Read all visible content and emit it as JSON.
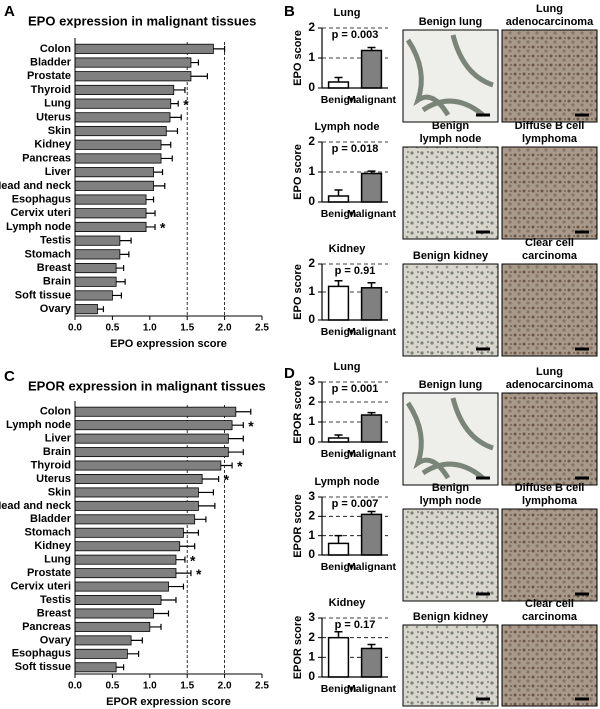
{
  "chart_data": [
    {
      "type": "hbar",
      "panel": "A",
      "title": "EPO expression in malignant tissues",
      "x_label": "EPO expression score",
      "categories": [
        "Colon",
        "Bladder",
        "Prostate",
        "Thyroid",
        "Lung",
        "Uterus",
        "Skin",
        "Kidney",
        "Pancreas",
        "Liver",
        "Head and neck",
        "Esophagus",
        "Cervix uteri",
        "Lymph node",
        "Testis",
        "Stomach",
        "Breast",
        "Brain",
        "Soft tissue",
        "Ovary"
      ],
      "values": [
        1.85,
        1.55,
        1.55,
        1.32,
        1.28,
        1.27,
        1.22,
        1.15,
        1.15,
        1.05,
        1.05,
        0.95,
        0.95,
        0.95,
        0.6,
        0.6,
        0.55,
        0.55,
        0.5,
        0.3
      ],
      "errors": [
        0.15,
        0.1,
        0.22,
        0.15,
        0.1,
        0.15,
        0.15,
        0.13,
        0.15,
        0.12,
        0.15,
        0.1,
        0.12,
        0.12,
        0.15,
        0.12,
        0.1,
        0.12,
        0.12,
        0.08
      ],
      "significance": [
        null,
        null,
        null,
        null,
        "*",
        null,
        null,
        null,
        null,
        null,
        null,
        null,
        null,
        "*",
        null,
        null,
        null,
        null,
        null,
        null
      ],
      "color": "#808080",
      "xlim": [
        0,
        2.5
      ],
      "xticks": [
        {
          "value": 0,
          "label": "0.0"
        },
        0.5,
        {
          "value": 1,
          "label": "1.0"
        },
        1.5,
        {
          "value": 2,
          "label": "2.0"
        },
        2.5
      ],
      "reference_lines": [
        1.5,
        2
      ]
    },
    {
      "type": "hbar",
      "panel": "C",
      "title": "EPOR expression in malignant tissues",
      "x_label": "EPOR expression score",
      "categories": [
        "Colon",
        "Lymph node",
        "Liver",
        "Brain",
        "Thyroid",
        "Uterus",
        "Skin",
        "Head and neck",
        "Bladder",
        "Stomach",
        "Kidney",
        "Lung",
        "Prostate",
        "Cervix uteri",
        "Testis",
        "Breast",
        "Pancreas",
        "Ovary",
        "Esophagus",
        "Soft tissue"
      ],
      "values": [
        2.15,
        2.1,
        2.05,
        2.05,
        1.95,
        1.7,
        1.65,
        1.65,
        1.6,
        1.45,
        1.4,
        1.35,
        1.35,
        1.25,
        1.15,
        1.05,
        1.0,
        0.75,
        0.7,
        0.55
      ],
      "errors": [
        0.2,
        0.15,
        0.2,
        0.2,
        0.15,
        0.22,
        0.2,
        0.22,
        0.15,
        0.2,
        0.2,
        0.12,
        0.2,
        0.2,
        0.2,
        0.2,
        0.15,
        0.15,
        0.15,
        0.1
      ],
      "significance": [
        null,
        "*",
        null,
        null,
        "*",
        "*",
        null,
        null,
        null,
        null,
        null,
        "*",
        "*",
        null,
        null,
        null,
        null,
        null,
        null,
        null
      ],
      "color": "#808080",
      "xlim": [
        0,
        2.5
      ],
      "xticks": [
        {
          "value": 0,
          "label": "0.0"
        },
        0.5,
        {
          "value": 1,
          "label": "1.0"
        },
        1.5,
        {
          "value": 2,
          "label": "2.0"
        },
        2.5
      ],
      "reference_lines": [
        1.5,
        2
      ]
    },
    {
      "type": "bar",
      "panel": "B",
      "title": "Lung",
      "y_label": "EPO score",
      "annotation": "p = 0.003",
      "categories": [
        "Benign",
        "Malignant"
      ],
      "values": [
        0.2,
        1.25
      ],
      "errors": [
        0.15,
        0.1
      ],
      "colors": [
        "#ffffff",
        "#808080"
      ],
      "ylim": [
        0,
        2
      ],
      "yticks": [
        0,
        1,
        2
      ],
      "grid": true
    },
    {
      "type": "bar",
      "title": "Lymph node",
      "y_label": "EPO score",
      "annotation": "p = 0.018",
      "categories": [
        "Benign",
        "Malignant"
      ],
      "values": [
        0.2,
        0.95
      ],
      "errors": [
        0.2,
        0.08
      ],
      "colors": [
        "#ffffff",
        "#808080"
      ],
      "ylim": [
        0,
        2
      ],
      "yticks": [
        0,
        1,
        2
      ],
      "grid": true
    },
    {
      "type": "bar",
      "title": "Kidney",
      "y_label": "EPO score",
      "annotation": "p = 0.91",
      "categories": [
        "Benign",
        "Malignant"
      ],
      "values": [
        1.2,
        1.15
      ],
      "errors": [
        0.2,
        0.18
      ],
      "colors": [
        "#ffffff",
        "#808080"
      ],
      "ylim": [
        0,
        2
      ],
      "yticks": [
        0,
        1,
        2
      ],
      "grid": true
    },
    {
      "type": "bar",
      "panel": "D",
      "title": "Lung",
      "y_label": "EPOR score",
      "annotation": "p = 0.001",
      "categories": [
        "Benign",
        "Malignant"
      ],
      "values": [
        0.2,
        1.35
      ],
      "errors": [
        0.15,
        0.12
      ],
      "colors": [
        "#ffffff",
        "#808080"
      ],
      "ylim": [
        0,
        3
      ],
      "yticks": [
        0,
        1,
        2,
        3
      ],
      "grid": true
    },
    {
      "type": "bar",
      "title": "Lymph node",
      "y_label": "EPOR score",
      "annotation": "p = 0.007",
      "categories": [
        "Benign",
        "Malignant"
      ],
      "values": [
        0.6,
        2.1
      ],
      "errors": [
        0.4,
        0.15
      ],
      "colors": [
        "#ffffff",
        "#808080"
      ],
      "ylim": [
        0,
        3
      ],
      "yticks": [
        0,
        1,
        2,
        3
      ],
      "grid": true
    },
    {
      "type": "bar",
      "title": "Kidney",
      "y_label": "EPOR score",
      "annotation": "p = 0.17",
      "categories": [
        "Benign",
        "Malignant"
      ],
      "values": [
        2.0,
        1.45
      ],
      "errors": [
        0.3,
        0.2
      ],
      "colors": [
        "#ffffff",
        "#808080"
      ],
      "ylim": [
        0,
        3
      ],
      "yticks": [
        0,
        1,
        2,
        3
      ],
      "grid": true
    }
  ],
  "micrographs": [
    {
      "caption": [
        "Benign lung"
      ]
    },
    {
      "caption": [
        "Lung",
        "adenocarcinoma"
      ]
    },
    {
      "caption": [
        "Benign",
        "lymph node"
      ]
    },
    {
      "caption": [
        "Diffuse B cell",
        "lymphoma"
      ]
    },
    {
      "caption": [
        "Benign kidney"
      ]
    },
    {
      "caption": [
        "Clear cell",
        "carcinoma"
      ]
    },
    {
      "caption": [
        "Benign lung"
      ]
    },
    {
      "caption": [
        "Lung",
        "adenocarcinoma"
      ]
    },
    {
      "caption": [
        "Benign",
        "lymph node"
      ]
    },
    {
      "caption": [
        "Diffuse B cell",
        "lymphoma"
      ]
    },
    {
      "caption": [
        "Benign kidney"
      ]
    },
    {
      "caption": [
        "Clear cell",
        "carcinoma"
      ]
    }
  ]
}
